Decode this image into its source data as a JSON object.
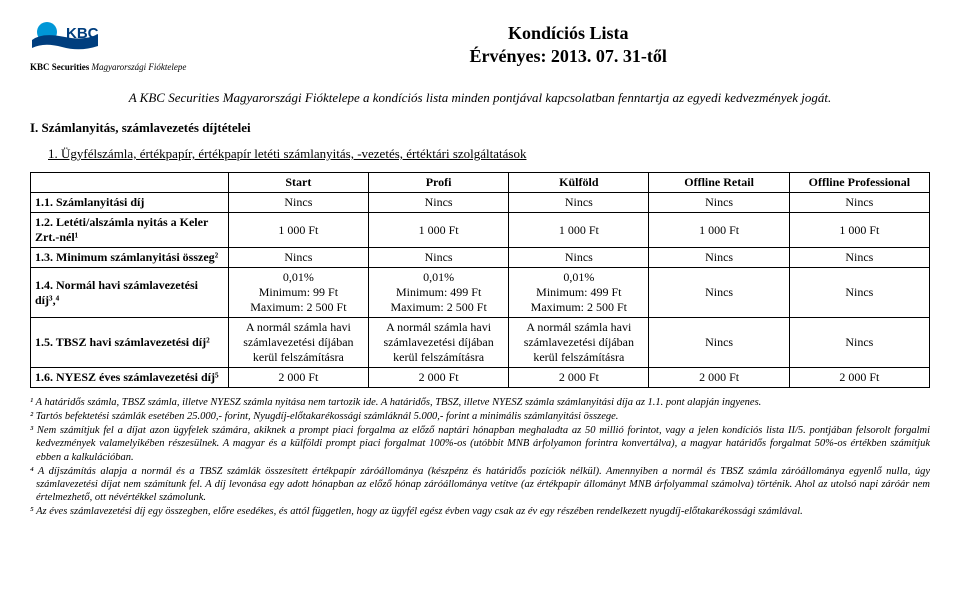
{
  "header": {
    "company_bold": "KBC Securities",
    "company_italic": "Magyarországi Fióktelepe",
    "title_line1": "Kondíciós Lista",
    "title_line2": "Érvényes: 2013. 07. 31-től"
  },
  "intro": "A KBC Securities Magyarországi Fióktelepe a kondíciós lista minden pontjával kapcsolatban fenntartja az egyedi kedvezmények jogát.",
  "section1_title": "I.  Számlanyitás, számlavezetés díjtételei",
  "section1_sub": "1.   Ügyfélszámla, értékpapír, értékpapír letéti számlanyitás, -vezetés, értéktári szolgáltatások",
  "table": {
    "columns": [
      "Start",
      "Profi",
      "Külföld",
      "Offline Retail",
      "Offline Professional"
    ],
    "rows": [
      {
        "label": "1.1. Számlanyitási díj",
        "cells": [
          "Nincs",
          "Nincs",
          "Nincs",
          "Nincs",
          "Nincs"
        ]
      },
      {
        "label": "1.2. Letéti/alszámla nyitás a Keler Zrt.-nél¹",
        "cells": [
          "1 000 Ft",
          "1 000 Ft",
          "1 000 Ft",
          "1 000 Ft",
          "1 000 Ft"
        ]
      },
      {
        "label": "1.3. Minimum számlanyitási összeg²",
        "cells": [
          "Nincs",
          "Nincs",
          "Nincs",
          "Nincs",
          "Nincs"
        ]
      },
      {
        "label": "1.4. Normál havi számlavezetési díj³,⁴",
        "cells": [
          "0,01%\nMinimum: 99 Ft\nMaximum: 2 500 Ft",
          "0,01%\nMinimum: 499 Ft\nMaximum: 2 500 Ft",
          "0,01%\nMinimum: 499 Ft\nMaximum: 2 500 Ft",
          "Nincs",
          "Nincs"
        ]
      },
      {
        "label": "1.5. TBSZ havi számlavezetési díj²",
        "cells": [
          "A normál számla havi számlavezetési díjában kerül felszámításra",
          "A normál számla havi számlavezetési díjában kerül felszámításra",
          "A normál számla havi számlavezetési díjában kerül felszámításra",
          "Nincs",
          "Nincs"
        ]
      },
      {
        "label": "1.6. NYESZ éves számlavezetési díj⁵",
        "cells": [
          "2 000 Ft",
          "2 000 Ft",
          "2 000 Ft",
          "2 000 Ft",
          "2 000 Ft"
        ]
      }
    ]
  },
  "footnotes": {
    "f1": "¹ A határidős számla, TBSZ számla, illetve NYESZ számla nyitása nem tartozik ide. A határidős, TBSZ, illetve NYESZ számla számlanyitási díja az 1.1. pont alapján ingyenes.",
    "f2": "² Tartós befektetési számlák esetében 25.000,- forint, Nyugdíj-előtakarékossági számláknál 5.000,- forint a minimális számlanyitási összege.",
    "f3a": "³ Nem számítjuk fel a díjat azon ügyfelek számára, akiknek a prompt piaci forgalma az előző naptári hónapban meghaladta az 50 millió forintot, vagy a jelen kondíciós lista II/5. pontjában felsorolt forgalmi kedvezmények valamelyikében  részesülnek. A magyar és a külföldi prompt piaci forgalmat 100%-os (utóbbit MNB árfolyamon forintra konvertálva), a magyar határidős forgalmat 50%-os értékben számítjuk ebben a kalkulációban.",
    "f4a": "⁴ A díjszámítás alapja a normál és a TBSZ számlák összesített értékpapír záróállománya (készpénz és határidős pozíciók nélkül). Amennyiben a normál és TBSZ számla záróállománya egyenlő nulla, úgy számlavezetési díjat nem számítunk fel. A díj levonása egy adott hónapban az előző hónap záróállománya vetítve (az értékpapír állományt MNB árfolyammal számolva) történik. Ahol az utolsó napi záróár nem értelmezhető, ott névértékkel számolunk.",
    "f5": "⁵ Az éves számlavezetési díj egy összegben, előre esedékes, és attól független, hogy az ügyfél egész évben vagy csak az év egy részében rendelkezett nyugdíj-előtakarékossági számlával."
  },
  "colors": {
    "logo_blue": "#003e7e",
    "logo_cyan": "#0097d7"
  }
}
